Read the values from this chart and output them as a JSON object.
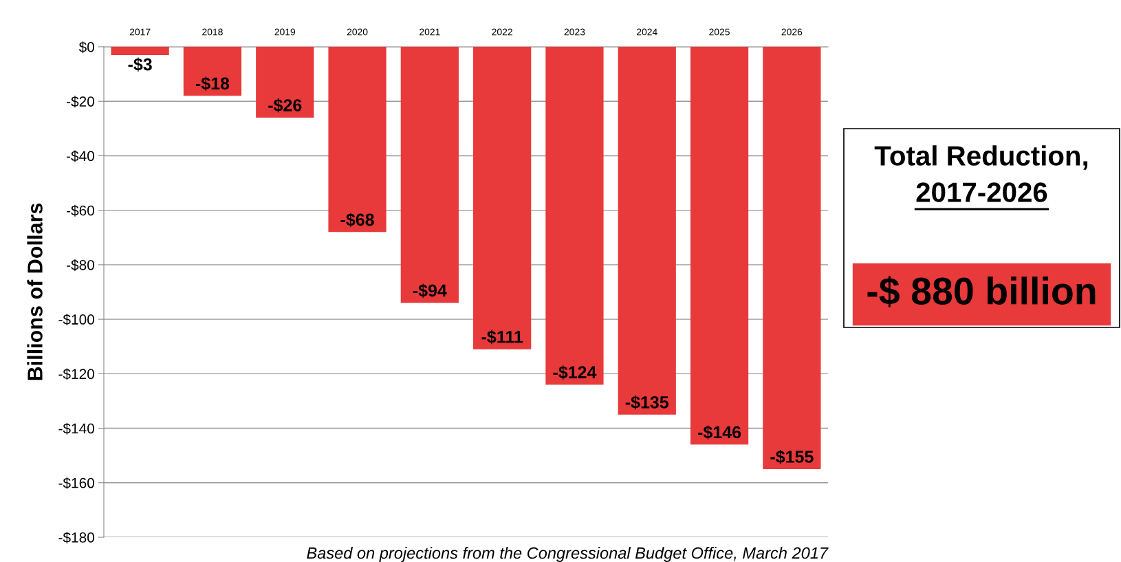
{
  "chart_data": [
    {
      "type": "bar",
      "categories": [
        "2017",
        "2018",
        "2019",
        "2020",
        "2021",
        "2022",
        "2023",
        "2024",
        "2025",
        "2026"
      ],
      "values": [
        -3,
        -18,
        -26,
        -68,
        -94,
        -111,
        -124,
        -135,
        -146,
        -155
      ],
      "value_labels": [
        "-$3",
        "-$18",
        "-$26",
        "-$68",
        "-$94",
        "-$111",
        "-$124",
        "-$135",
        "-$146",
        "-$155"
      ],
      "color": "#e8393b",
      "ylabel": "Billions of Dollars",
      "ylim": [
        -180,
        0
      ],
      "yticks": [
        {
          "value": 0,
          "label": "$0"
        },
        {
          "value": -20,
          "label": "-$20"
        },
        {
          "value": -40,
          "label": "-$40"
        },
        {
          "value": -60,
          "label": "-$60"
        },
        {
          "value": -80,
          "label": "-$80"
        },
        {
          "value": -100,
          "label": "-$100"
        },
        {
          "value": -120,
          "label": "-$120"
        },
        {
          "value": -140,
          "label": "-$140"
        },
        {
          "value": -160,
          "label": "-$160"
        },
        {
          "value": -180,
          "label": "-$180"
        }
      ],
      "grid": "y",
      "legend": false,
      "annotations": [
        "Based on projections from the Congressional Budget Office, March 2017"
      ]
    },
    {
      "type": "other",
      "title": "Total Reduction,",
      "subtitle": "2017-2026",
      "annotations": [
        "-$ 880 billion"
      ]
    }
  ]
}
